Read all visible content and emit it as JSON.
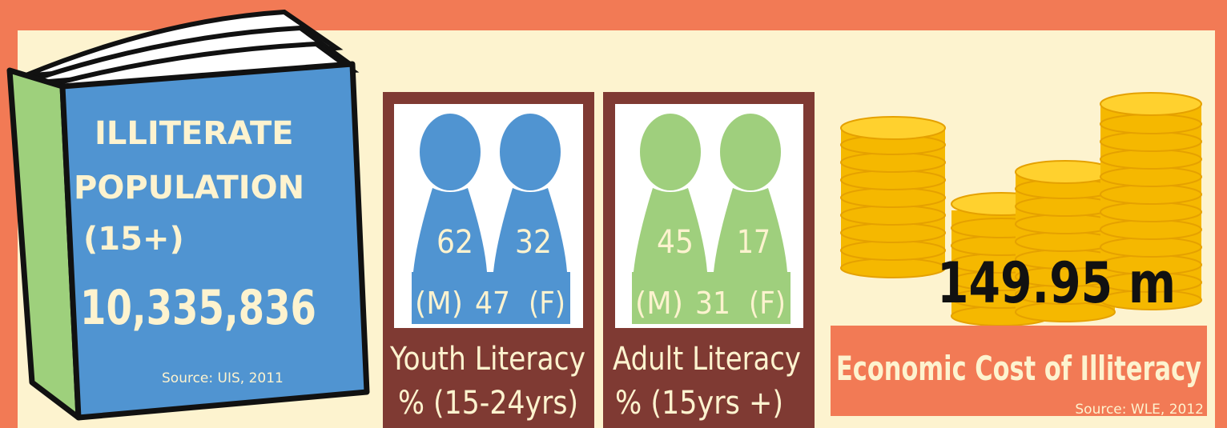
{
  "book": {
    "title_lines": [
      "ILLITERATE",
      "POPULATION",
      "(15+)"
    ],
    "value": "10,335,836",
    "source": "Source: UIS, 2011"
  },
  "youth": {
    "male": 62,
    "female": 32,
    "total": 47,
    "male_label": "(M)",
    "female_label": "(F)",
    "title_lines": [
      "Youth Literacy",
      "% (15-24yrs)"
    ]
  },
  "adult": {
    "male": 45,
    "female": 17,
    "total": 31,
    "male_label": "(M)",
    "female_label": "(F)",
    "title_lines": [
      "Adult Literacy",
      "% (15yrs +)"
    ]
  },
  "cost": {
    "value": "149.95 m",
    "title": "Economic Cost of Illiteracy",
    "source": "Source: WLE, 2012"
  }
}
